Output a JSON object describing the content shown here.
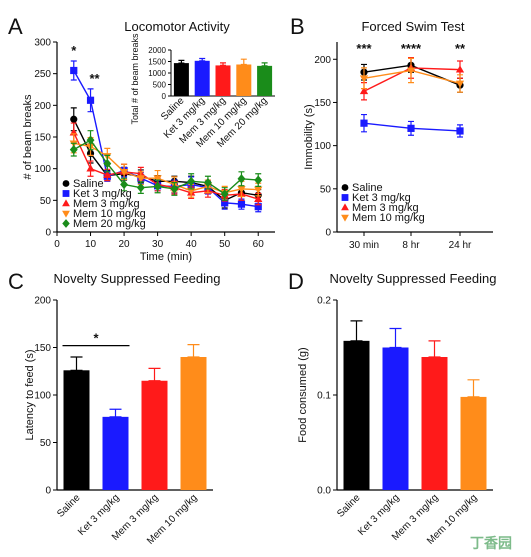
{
  "watermark": "丁香园",
  "colors": {
    "Saline": "#000000",
    "Ket 3 mg/kg": "#1a1aff",
    "Mem 3 mg/kg": "#ff1a1a",
    "Mem 10 mg/kg": "#ff8c1a",
    "Mem 20 mg/kg": "#1a8c1a"
  },
  "chart_data": [
    {
      "panel": "A",
      "type": "line",
      "title": "Locomotor Activity",
      "xlabel": "Time (min)",
      "ylabel": "# of beam breaks",
      "xlim": [
        0,
        65
      ],
      "ylim": [
        0,
        300
      ],
      "xticks": [
        0,
        10,
        20,
        30,
        40,
        50,
        60
      ],
      "yticks": [
        0,
        50,
        100,
        150,
        200,
        250,
        300
      ],
      "x": [
        5,
        10,
        15,
        20,
        25,
        30,
        35,
        40,
        45,
        50,
        55,
        60
      ],
      "series": [
        {
          "name": "Saline",
          "marker": "circle",
          "values": [
            178,
            124,
            89,
            92,
            88,
            80,
            80,
            78,
            72,
            50,
            62,
            58
          ],
          "errors": [
            18,
            15,
            8,
            10,
            10,
            9,
            8,
            10,
            10,
            12,
            10,
            9
          ]
        },
        {
          "name": "Ket 3 mg/kg",
          "marker": "square",
          "values": [
            255,
            208,
            88,
            97,
            85,
            73,
            72,
            75,
            70,
            46,
            44,
            40
          ],
          "errors": [
            15,
            18,
            8,
            10,
            9,
            8,
            10,
            12,
            10,
            10,
            8,
            8
          ]
        },
        {
          "name": "Mem 3 mg/kg",
          "marker": "triangle-up",
          "values": [
            157,
            100,
            90,
            95,
            92,
            75,
            70,
            62,
            65,
            58,
            60,
            52
          ],
          "errors": [
            15,
            12,
            9,
            12,
            10,
            10,
            10,
            9,
            10,
            9,
            10,
            9
          ]
        },
        {
          "name": "Mem 10 mg/kg",
          "marker": "triangle-down",
          "values": [
            140,
            135,
            120,
            95,
            85,
            85,
            75,
            65,
            72,
            62,
            68,
            67
          ],
          "errors": [
            15,
            14,
            12,
            12,
            10,
            12,
            12,
            10,
            10,
            10,
            12,
            10
          ]
        },
        {
          "name": "Mem 20 mg/kg",
          "marker": "diamond",
          "values": [
            130,
            145,
            108,
            75,
            70,
            72,
            68,
            80,
            78,
            60,
            84,
            82
          ],
          "errors": [
            10,
            15,
            13,
            10,
            9,
            10,
            10,
            12,
            10,
            10,
            11,
            10
          ]
        }
      ],
      "significance": [
        {
          "x": 5,
          "label": "*"
        },
        {
          "x": 10,
          "label": "**"
        }
      ],
      "legend": "bottom-left",
      "inset": {
        "type": "bar",
        "ylabel": "Total # of beam breaks",
        "ylim": [
          0,
          2000
        ],
        "yticks": [
          0,
          500,
          1000,
          1500,
          2000
        ],
        "categories": [
          "Saline",
          "Ket 3 mg/kg",
          "Mem 3 mg/kg",
          "Mem 10 mg/kg",
          "Mem 20 mg/kg"
        ],
        "values": [
          1430,
          1530,
          1330,
          1370,
          1310
        ],
        "errors": [
          120,
          100,
          110,
          230,
          130
        ]
      }
    },
    {
      "panel": "B",
      "type": "line",
      "title": "Forced Swim Test",
      "xlabel": "",
      "ylabel": "Immobility (s)",
      "ylim": [
        0,
        220
      ],
      "yticks": [
        0,
        50,
        100,
        150,
        200
      ],
      "categories": [
        "30 min",
        "8 hr",
        "24 hr"
      ],
      "series": [
        {
          "name": "Saline",
          "marker": "circle",
          "values": [
            185,
            193,
            170
          ],
          "errors": [
            9,
            8,
            8
          ]
        },
        {
          "name": "Ket 3 mg/kg",
          "marker": "square",
          "values": [
            126,
            120,
            117
          ],
          "errors": [
            10,
            8,
            7
          ]
        },
        {
          "name": "Mem 3 mg/kg",
          "marker": "triangle-up",
          "values": [
            163,
            190,
            188
          ],
          "errors": [
            10,
            12,
            10
          ]
        },
        {
          "name": "Mem 10 mg/kg",
          "marker": "triangle-down",
          "values": [
            178,
            187,
            172
          ],
          "errors": [
            12,
            14,
            10
          ]
        }
      ],
      "significance": [
        "***",
        "****",
        "**"
      ],
      "legend": "bottom-left"
    },
    {
      "panel": "C",
      "type": "bar",
      "title": "Novelty Suppressed Feeding",
      "ylabel": "Latency to feed (s)",
      "ylim": [
        0,
        200
      ],
      "yticks": [
        0,
        50,
        100,
        150,
        200
      ],
      "categories": [
        "Saline",
        "Ket 3 mg/kg",
        "Mem 3 mg/kg",
        "Mem 10 mg/kg"
      ],
      "values": [
        126,
        77,
        115,
        140
      ],
      "errors": [
        14,
        8,
        13,
        13
      ],
      "significance": {
        "from": 0,
        "to": 1,
        "label": "*"
      }
    },
    {
      "panel": "D",
      "type": "bar",
      "title": "Novelty Suppressed Feeding",
      "ylabel": "Food consumed (g)",
      "ylim": [
        0,
        0.2
      ],
      "yticks": [
        0.0,
        0.1,
        0.2
      ],
      "ytick_labels": [
        "0.0",
        "0.1",
        "0.2"
      ],
      "categories": [
        "Saline",
        "Ket 3 mg/kg",
        "Mem 3 mg/kg",
        "Mem 10 mg/kg"
      ],
      "values": [
        0.157,
        0.15,
        0.14,
        0.098
      ],
      "errors": [
        0.021,
        0.02,
        0.017,
        0.018
      ]
    }
  ]
}
